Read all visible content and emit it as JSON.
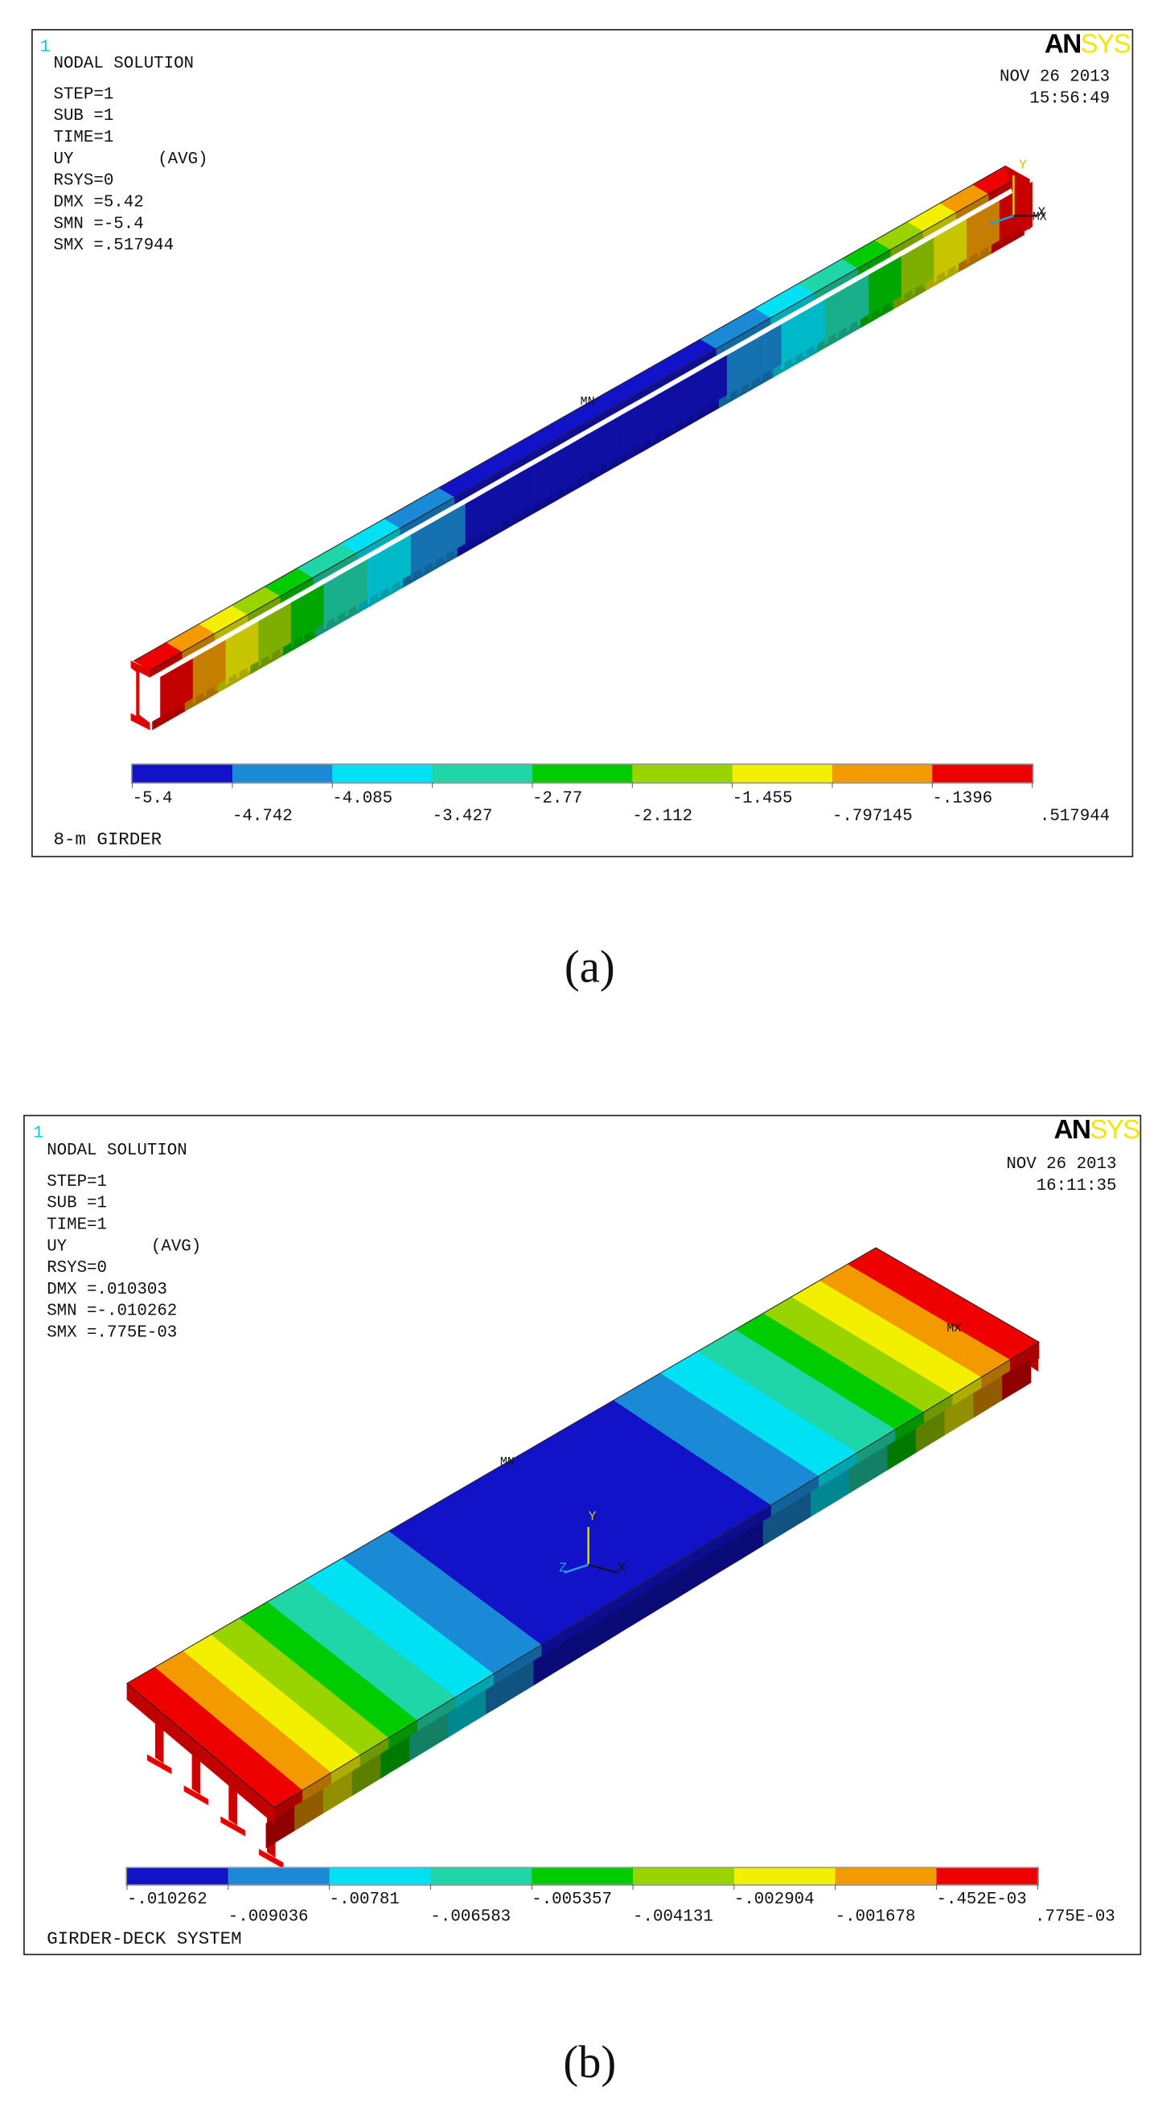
{
  "panels": [
    {
      "window": "1",
      "logo_an": "AN",
      "logo_sys": "SYS",
      "header": "NODAL SOLUTION",
      "info": [
        "STEP=1",
        "SUB =1",
        "TIME=1",
        "UY",
        "RSYS=0",
        "DMX =5.42",
        "SMN =-5.4",
        "SMX =.517944"
      ],
      "avg": "(AVG)",
      "date": "NOV 26 2013",
      "time": "15:56:49",
      "legend": [
        "-5.4",
        "-4.742",
        "-4.085",
        "-3.427",
        "-2.77",
        "-2.112",
        "-1.455",
        "-.797145",
        "-.1396",
        ".517944"
      ],
      "title": "8-m GIRDER",
      "min_label": "MN",
      "max_label": "MX",
      "triad": [
        "Y",
        "X"
      ],
      "caption": "(a)"
    },
    {
      "window": "1",
      "logo_an": "AN",
      "logo_sys": "SYS",
      "header": "NODAL SOLUTION",
      "info": [
        "STEP=1",
        "SUB =1",
        "TIME=1",
        "UY",
        "RSYS=0",
        "DMX =.010303",
        "SMN =-.010262",
        "SMX =.775E-03"
      ],
      "avg": "(AVG)",
      "date": "NOV 26 2013",
      "time": "16:11:35",
      "legend": [
        "-.010262",
        "-.009036",
        "-.00781",
        "-.006583",
        "-.005357",
        "-.004131",
        "-.002904",
        "-.001678",
        "-.452E-03",
        ".775E-03"
      ],
      "title": "GIRDER-DECK SYSTEM",
      "min_label": "MN",
      "max_label": "MX",
      "triad": [
        "Y",
        "Z",
        "X"
      ],
      "caption": "(b)"
    }
  ]
}
